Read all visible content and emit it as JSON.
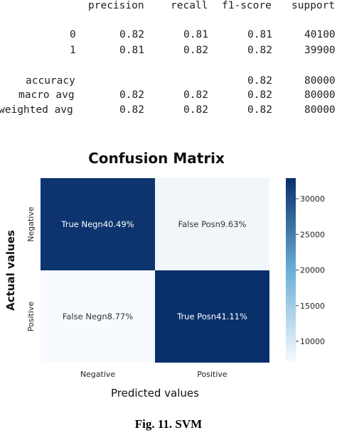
{
  "report": {
    "headers": [
      "precision",
      "recall",
      "f1-score",
      "support"
    ],
    "rows": [
      {
        "label": "0",
        "precision": "0.82",
        "recall": "0.81",
        "f1": "0.81",
        "support": "40100"
      },
      {
        "label": "1",
        "precision": "0.81",
        "recall": "0.82",
        "f1": "0.82",
        "support": "39900"
      },
      {
        "label": "accuracy",
        "precision": "",
        "recall": "",
        "f1": "0.82",
        "support": "80000"
      },
      {
        "label": "macro avg",
        "precision": "0.82",
        "recall": "0.82",
        "f1": "0.82",
        "support": "80000"
      },
      {
        "label": "weighted avg",
        "precision": "0.82",
        "recall": "0.82",
        "f1": "0.82",
        "support": "80000"
      }
    ]
  },
  "chart_data": {
    "type": "heatmap",
    "title": "Confusion Matrix",
    "xlabel": "Predicted values",
    "ylabel": "Actual values",
    "x_categories": [
      "Negative",
      "Positive"
    ],
    "y_categories": [
      "Negative",
      "Positive"
    ],
    "cells": [
      [
        {
          "label": "True Negn40.49%",
          "value": 32392
        },
        {
          "label": "False Posn9.63%",
          "value": 7704
        }
      ],
      [
        {
          "label": "False Negn8.77%",
          "value": 7016
        },
        {
          "label": "True Posn41.11%",
          "value": 32888
        }
      ]
    ],
    "colorbar": {
      "ticks": [
        10000,
        15000,
        20000,
        25000,
        30000
      ],
      "range": [
        7016,
        32888
      ]
    },
    "colors": {
      "low": "#f7fbff",
      "high": "#08306b"
    }
  },
  "caption": "Fig. 11. SVM"
}
